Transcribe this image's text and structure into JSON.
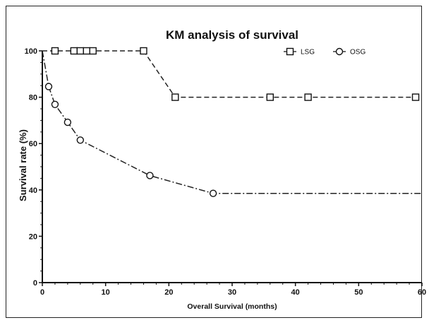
{
  "chart_data": {
    "type": "line",
    "title": "KM analysis of survival",
    "xlabel": "Overall Survival (months)",
    "ylabel": "Survival rate (%)",
    "xlim": [
      0,
      60
    ],
    "ylim": [
      0,
      100
    ],
    "xticks": [
      0,
      10,
      20,
      30,
      40,
      50,
      60
    ],
    "yticks": [
      0,
      20,
      40,
      60,
      80,
      100
    ],
    "grid": false,
    "legend_position": "top-right",
    "series": [
      {
        "name": "LSG",
        "marker": "square",
        "line_style": "dashed",
        "color": "#222222",
        "steps": [
          [
            0,
            100
          ],
          [
            16,
            100
          ],
          [
            21,
            80
          ],
          [
            60,
            80
          ]
        ],
        "markers": [
          [
            2,
            100
          ],
          [
            5,
            100
          ],
          [
            6,
            100
          ],
          [
            7,
            100
          ],
          [
            8,
            100
          ],
          [
            16,
            100
          ],
          [
            21,
            80
          ],
          [
            36,
            80
          ],
          [
            42,
            80
          ],
          [
            59,
            80
          ]
        ]
      },
      {
        "name": "OSG",
        "marker": "circle",
        "line_style": "dash-dot",
        "color": "#222222",
        "steps": [
          [
            0,
            100
          ],
          [
            1,
            84.6
          ],
          [
            2,
            76.9
          ],
          [
            4,
            69.2
          ],
          [
            6,
            61.5
          ],
          [
            17,
            46.2
          ],
          [
            27,
            38.5
          ],
          [
            60,
            38.5
          ]
        ],
        "markers": [
          [
            1,
            84.6
          ],
          [
            2,
            76.9
          ],
          [
            4,
            69.2
          ],
          [
            6,
            61.5
          ],
          [
            17,
            46.2
          ],
          [
            27,
            38.5
          ]
        ]
      }
    ]
  }
}
